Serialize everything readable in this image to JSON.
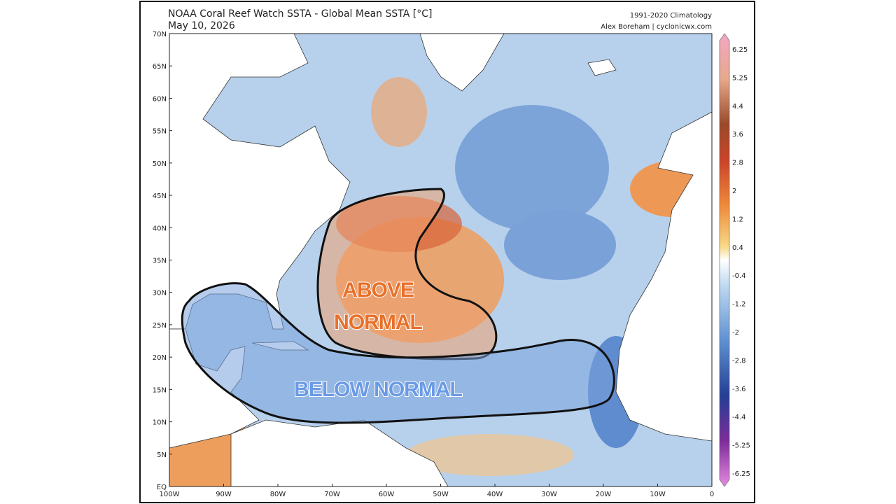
{
  "header": {
    "title": "NOAA Coral Reef Watch SSTA - Global Mean SSTA [°C]",
    "date": "May 10, 2026",
    "climatology": "1991-2020 Climatology",
    "credit": "Alex Boreham | cyclonicwx.com"
  },
  "map": {
    "lat_labels": [
      "70N",
      "65N",
      "60N",
      "55N",
      "50N",
      "45N",
      "40N",
      "35N",
      "30N",
      "25N",
      "20N",
      "15N",
      "10N",
      "5N",
      "EQ"
    ],
    "lon_labels": [
      "100W",
      "90W",
      "80W",
      "70W",
      "60W",
      "50W",
      "40W",
      "30W",
      "20W",
      "10W",
      "0"
    ]
  },
  "colorbar": {
    "labels": [
      6.25,
      5.25,
      4.4,
      3.6,
      2.8,
      2,
      1.2,
      0.4,
      -0.4,
      -1.2,
      -2,
      -2.8,
      -3.6,
      -4.4,
      -5.25,
      -6.25
    ]
  },
  "annotations": {
    "above": [
      "ABOVE",
      "NORMAL"
    ],
    "below": "BELOW NORMAL"
  }
}
